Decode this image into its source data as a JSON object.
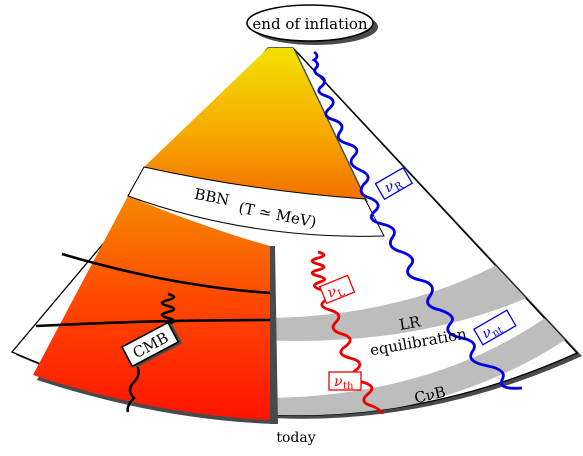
{
  "title": "end of inflation",
  "labels": {
    "bbn": "BBN",
    "bbn_temp": "(T ≃ MeV)",
    "cmb": "CMB",
    "lr_line1": "LR",
    "lr_line2": "equilibration",
    "cnub": "CνB",
    "today": "today"
  },
  "neutrinos": {
    "nu_r": {
      "symbol": "ν",
      "sub": "R",
      "color": "#0000ee"
    },
    "nu_nt": {
      "symbol": "ν",
      "sub": "nt",
      "color": "#0000ee"
    },
    "nu_l": {
      "symbol": "ν",
      "sub": "L",
      "color": "#ee0000"
    },
    "nu_th": {
      "symbol": "ν",
      "sub": "th",
      "color": "#ee0000"
    }
  },
  "colors": {
    "hot_top": "#f2e000",
    "hot_bottom": "#ff1e00",
    "band": "#bdbdbd"
  }
}
